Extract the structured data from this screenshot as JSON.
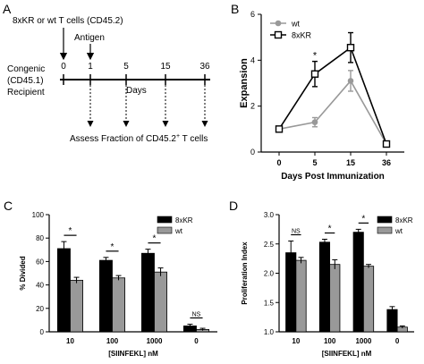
{
  "panels": {
    "a": "A",
    "b": "B",
    "c": "C",
    "d": "D"
  },
  "schematic": {
    "top_label": "8xKR or wt T cells (CD45.2)",
    "antigen_label": "Antigen",
    "recipient_lines": [
      "Congenic",
      "(CD45.1)",
      "Recipient"
    ],
    "timeline_ticks": [
      "0",
      "1",
      "5",
      "15",
      "36"
    ],
    "days_label": "Days",
    "assess_label": "Assess Fraction of CD45.2",
    "assess_sup": "+",
    "assess_suffix": " T cells"
  },
  "chart_data": [
    {
      "id": "B",
      "type": "line",
      "xlabel": "Days Post Immunization",
      "ylabel": "Expansion",
      "x": [
        "0",
        "5",
        "15",
        "36"
      ],
      "ylim": [
        0,
        6
      ],
      "yticks": [
        0,
        2,
        4,
        6
      ],
      "series": [
        {
          "name": "wt",
          "values": [
            1.0,
            1.3,
            3.1,
            0.35
          ],
          "errors": [
            0,
            0.2,
            0.45,
            0
          ],
          "color": "#999999",
          "marker": "filled-circle"
        },
        {
          "name": "8xKR",
          "values": [
            1.0,
            3.4,
            4.55,
            0.35
          ],
          "errors": [
            0,
            0.55,
            0.65,
            0
          ],
          "color": "#000000",
          "marker": "open-square"
        }
      ],
      "annotations": [
        {
          "x": "5",
          "text": "*"
        }
      ],
      "legend": "top-left"
    },
    {
      "id": "C",
      "type": "bar",
      "xlabel": "[SIINFEKL] nM",
      "ylabel": "% Divided",
      "categories": [
        "10",
        "100",
        "1000",
        "0"
      ],
      "ylim": [
        0,
        100
      ],
      "yticks": [
        0,
        20,
        40,
        60,
        80,
        100
      ],
      "series": [
        {
          "name": "8xKR",
          "values": [
            71,
            61,
            67,
            5
          ],
          "errors": [
            6,
            2.5,
            3.5,
            1.5
          ],
          "color": "#000000"
        },
        {
          "name": "wt",
          "values": [
            44,
            46,
            51,
            2
          ],
          "errors": [
            2.5,
            2,
            3.5,
            1
          ],
          "color": "#999999"
        }
      ],
      "significance": [
        "*",
        "*",
        "*",
        "NS"
      ],
      "legend": "top-right"
    },
    {
      "id": "D",
      "type": "bar",
      "xlabel": "[SIINFEKL] nM",
      "ylabel": "Proliferation Index",
      "categories": [
        "10",
        "100",
        "1000",
        "0"
      ],
      "ylim": [
        1.0,
        3.0
      ],
      "yticks": [
        1.0,
        1.5,
        2.0,
        2.5,
        3.0
      ],
      "series": [
        {
          "name": "8xKR",
          "values": [
            2.35,
            2.53,
            2.7,
            1.38
          ],
          "errors": [
            0.2,
            0.05,
            0.05,
            0.05
          ],
          "color": "#000000"
        },
        {
          "name": "wt",
          "values": [
            2.22,
            2.15,
            2.12,
            1.08
          ],
          "errors": [
            0.05,
            0.08,
            0.03,
            0.02
          ],
          "color": "#999999"
        }
      ],
      "significance": [
        "NS",
        "*",
        "*",
        ""
      ],
      "legend": "top-right"
    }
  ]
}
